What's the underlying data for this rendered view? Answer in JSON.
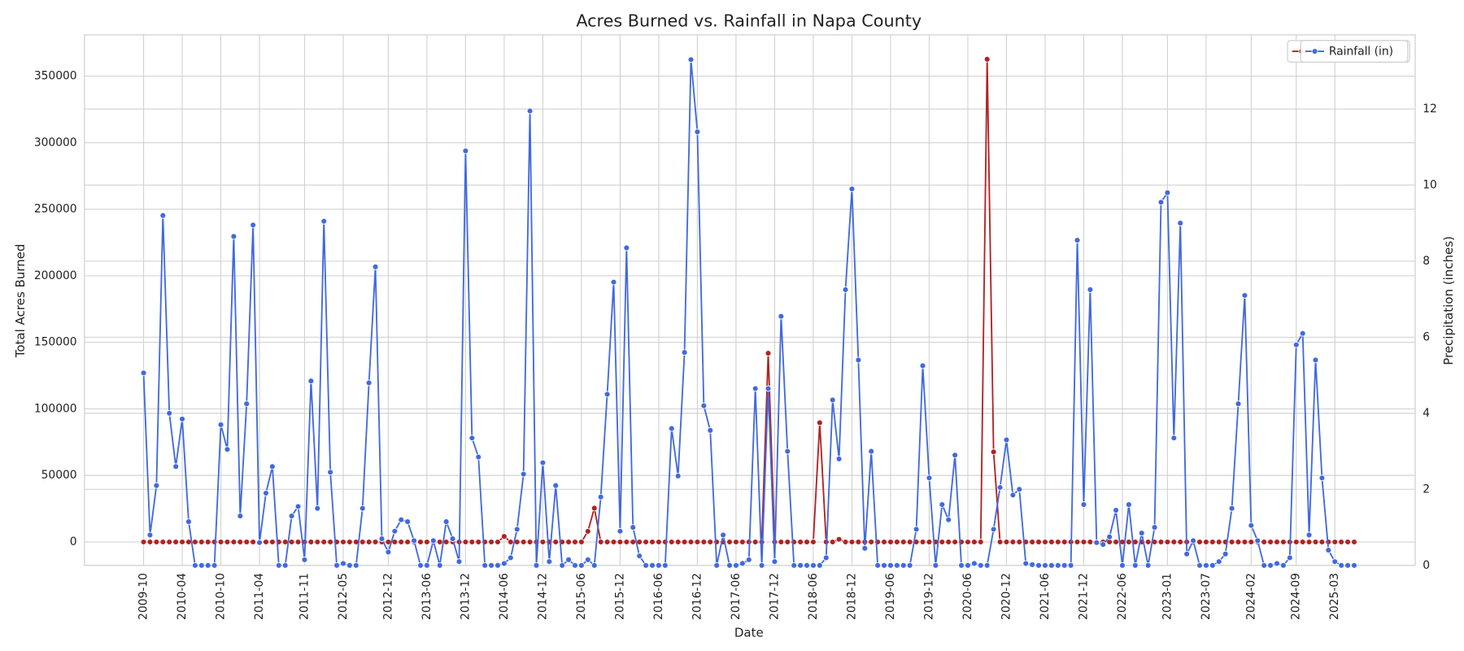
{
  "chart_data": {
    "type": "line",
    "title": "Acres Burned vs. Rainfall in Napa County",
    "xlabel": "Date",
    "ylabel": "Total Acres Burned",
    "y2label": "Precipitation (inches)",
    "legend": "upper right",
    "grid": true,
    "x": [
      "2009-10",
      "2009-11",
      "2009-12",
      "2010-01",
      "2010-02",
      "2010-03",
      "2010-04",
      "2010-05",
      "2010-06",
      "2010-07",
      "2010-08",
      "2010-09",
      "2010-10",
      "2010-11",
      "2010-12",
      "2011-01",
      "2011-02",
      "2011-03",
      "2011-04",
      "2011-05",
      "2011-06",
      "2011-07",
      "2011-08",
      "2011-09",
      "2011-10",
      "2011-11",
      "2011-12",
      "2012-01",
      "2012-02",
      "2012-03",
      "2012-04",
      "2012-05",
      "2012-06",
      "2012-07",
      "2012-08",
      "2012-09",
      "2012-10",
      "2012-11",
      "2012-12",
      "2013-01",
      "2013-02",
      "2013-03",
      "2013-04",
      "2013-05",
      "2013-06",
      "2013-07",
      "2013-08",
      "2013-09",
      "2013-10",
      "2013-11",
      "2013-12",
      "2014-01",
      "2014-02",
      "2014-03",
      "2014-04",
      "2014-05",
      "2014-06",
      "2014-07",
      "2014-08",
      "2014-09",
      "2014-10",
      "2014-11",
      "2014-12",
      "2015-01",
      "2015-02",
      "2015-03",
      "2015-04",
      "2015-05",
      "2015-06",
      "2015-07",
      "2015-08",
      "2015-09",
      "2015-10",
      "2015-11",
      "2015-12",
      "2016-01",
      "2016-02",
      "2016-03",
      "2016-04",
      "2016-05",
      "2016-06",
      "2016-07",
      "2016-08",
      "2016-09",
      "2016-10",
      "2016-11",
      "2016-12",
      "2017-01",
      "2017-02",
      "2017-03",
      "2017-04",
      "2017-05",
      "2017-06",
      "2017-07",
      "2017-08",
      "2017-09",
      "2017-10",
      "2017-11",
      "2017-12",
      "2018-01",
      "2018-02",
      "2018-03",
      "2018-04",
      "2018-05",
      "2018-06",
      "2018-07",
      "2018-08",
      "2018-09",
      "2018-10",
      "2018-11",
      "2018-12",
      "2019-01",
      "2019-02",
      "2019-03",
      "2019-04",
      "2019-05",
      "2019-06",
      "2019-07",
      "2019-08",
      "2019-09",
      "2019-10",
      "2019-11",
      "2019-12",
      "2020-01",
      "2020-02",
      "2020-03",
      "2020-04",
      "2020-05",
      "2020-06",
      "2020-07",
      "2020-08",
      "2020-09",
      "2020-10",
      "2020-11",
      "2020-12",
      "2021-01",
      "2021-02",
      "2021-03",
      "2021-04",
      "2021-05",
      "2021-06",
      "2021-07",
      "2021-08",
      "2021-09",
      "2021-10",
      "2021-11",
      "2021-12",
      "2022-01",
      "2022-02",
      "2022-03",
      "2022-04",
      "2022-05",
      "2022-06",
      "2022-07",
      "2022-08",
      "2022-09",
      "2022-10",
      "2022-11",
      "2022-12",
      "2023-01",
      "2023-02",
      "2023-03",
      "2023-04",
      "2023-05",
      "2023-06",
      "2023-07",
      "2023-08",
      "2023-09",
      "2023-10",
      "2023-11",
      "2023-12",
      "2024-01",
      "2024-02",
      "2024-03",
      "2024-04",
      "2024-05",
      "2024-06",
      "2024-07",
      "2024-08",
      "2024-09",
      "2024-10",
      "2024-11",
      "2024-12",
      "2025-01",
      "2025-02",
      "2025-03",
      "2025-04",
      "2025-05",
      "2025-06"
    ],
    "xticks": [
      "2009-10",
      "2010-04",
      "2010-10",
      "2011-04",
      "2011-11",
      "2012-05",
      "2012-12",
      "2013-06",
      "2013-12",
      "2014-06",
      "2014-12",
      "2015-06",
      "2015-12",
      "2016-06",
      "2016-12",
      "2017-06",
      "2017-12",
      "2018-06",
      "2018-12",
      "2019-06",
      "2019-12",
      "2020-06",
      "2020-12",
      "2021-06",
      "2021-12",
      "2022-06",
      "2023-01",
      "2023-07",
      "2024-02",
      "2024-09",
      "2025-03"
    ],
    "ylim": [
      -17600,
      381000
    ],
    "yticks": [
      0,
      50000,
      100000,
      150000,
      200000,
      250000,
      300000,
      350000
    ],
    "y2lim": [
      0,
      13.95
    ],
    "y2ticks": [
      0,
      2,
      4,
      6,
      8,
      10,
      12
    ],
    "series": [
      {
        "name": "Acres Burned",
        "color": "#b22222",
        "values": [
          0,
          0,
          0,
          0,
          0,
          0,
          0,
          0,
          0,
          0,
          0,
          0,
          0,
          0,
          0,
          0,
          0,
          0,
          0,
          0,
          0,
          0,
          0,
          0,
          0,
          0,
          0,
          0,
          0,
          0,
          0,
          0,
          0,
          0,
          0,
          0,
          0,
          0,
          0,
          0,
          0,
          0,
          0,
          0,
          0,
          0,
          0,
          0,
          0,
          0,
          0,
          0,
          0,
          0,
          0,
          0,
          4200,
          0,
          0,
          0,
          0,
          0,
          0,
          0,
          0,
          0,
          0,
          0,
          0,
          8000,
          25400,
          0,
          0,
          0,
          0,
          0,
          0,
          0,
          0,
          0,
          0,
          0,
          0,
          0,
          0,
          0,
          0,
          0,
          0,
          0,
          0,
          0,
          0,
          0,
          0,
          0,
          0,
          141800,
          0,
          0,
          0,
          0,
          0,
          0,
          0,
          89600,
          0,
          0,
          2000,
          0,
          0,
          0,
          0,
          0,
          0,
          0,
          0,
          0,
          0,
          0,
          0,
          0,
          0,
          0,
          0,
          0,
          0,
          0,
          0,
          0,
          0,
          362700,
          67700,
          0,
          0,
          0,
          0,
          0,
          0,
          0,
          0,
          0,
          0,
          0,
          0,
          0,
          0,
          0,
          0,
          0,
          0,
          0,
          0,
          0,
          0,
          0,
          0,
          0,
          0,
          0,
          0,
          0,
          0,
          0,
          0,
          0,
          0,
          0,
          0,
          0,
          0,
          0,
          0,
          0,
          0,
          0,
          0,
          0,
          0,
          0,
          0,
          0,
          0,
          0,
          0,
          0,
          0,
          0,
          0
        ]
      },
      {
        "name": "Rainfall (in)",
        "color": "#4169e1",
        "axis": "y2",
        "values": [
          5.06,
          0.8,
          2.1,
          9.2,
          4.0,
          2.6,
          3.85,
          1.15,
          0,
          0,
          0,
          0,
          3.7,
          3.05,
          8.65,
          1.3,
          4.25,
          8.95,
          0.6,
          1.9,
          2.6,
          0,
          0,
          1.3,
          1.55,
          0.15,
          4.85,
          1.5,
          9.05,
          2.45,
          0,
          0.05,
          0,
          0,
          1.5,
          4.8,
          7.85,
          0.7,
          0.35,
          0.9,
          1.2,
          1.15,
          0.65,
          0,
          0,
          0.65,
          0,
          1.15,
          0.7,
          0.1,
          10.9,
          3.35,
          2.85,
          0,
          0,
          0,
          0.05,
          0.2,
          0.95,
          2.4,
          11.95,
          0,
          2.7,
          0.1,
          2.1,
          0,
          0.15,
          0,
          0,
          0.15,
          0,
          1.8,
          4.5,
          7.45,
          0.9,
          8.35,
          1.0,
          0.25,
          0,
          0,
          0,
          0,
          3.6,
          2.35,
          5.6,
          13.3,
          11.4,
          4.2,
          3.55,
          0,
          0.8,
          0,
          0,
          0.05,
          0.15,
          4.65,
          0,
          4.65,
          0.1,
          6.55,
          3.0,
          0,
          0,
          0,
          0,
          0,
          0.2,
          4.35,
          2.8,
          7.25,
          9.9,
          5.4,
          0.45,
          3.0,
          0,
          0,
          0,
          0,
          0,
          0,
          0.95,
          5.25,
          2.3,
          0,
          1.6,
          1.2,
          2.9,
          0,
          0,
          0.05,
          0,
          0,
          0.95,
          2.05,
          3.3,
          1.85,
          2.0,
          0.05,
          0.02,
          0,
          0,
          0,
          0,
          0,
          0,
          8.55,
          1.6,
          7.25,
          0.6,
          0.55,
          0.75,
          1.45,
          0,
          1.6,
          0,
          0.85,
          0,
          1.0,
          9.55,
          9.8,
          3.35,
          9.0,
          0.3,
          0.65,
          0,
          0,
          0,
          0.1,
          0.3,
          1.5,
          4.25,
          7.1,
          1.05,
          0.65,
          0,
          0,
          0.05,
          0,
          0.2,
          5.8,
          6.1,
          0.8,
          5.4,
          2.3,
          0.4,
          0.1,
          0,
          0,
          0
        ]
      }
    ]
  }
}
